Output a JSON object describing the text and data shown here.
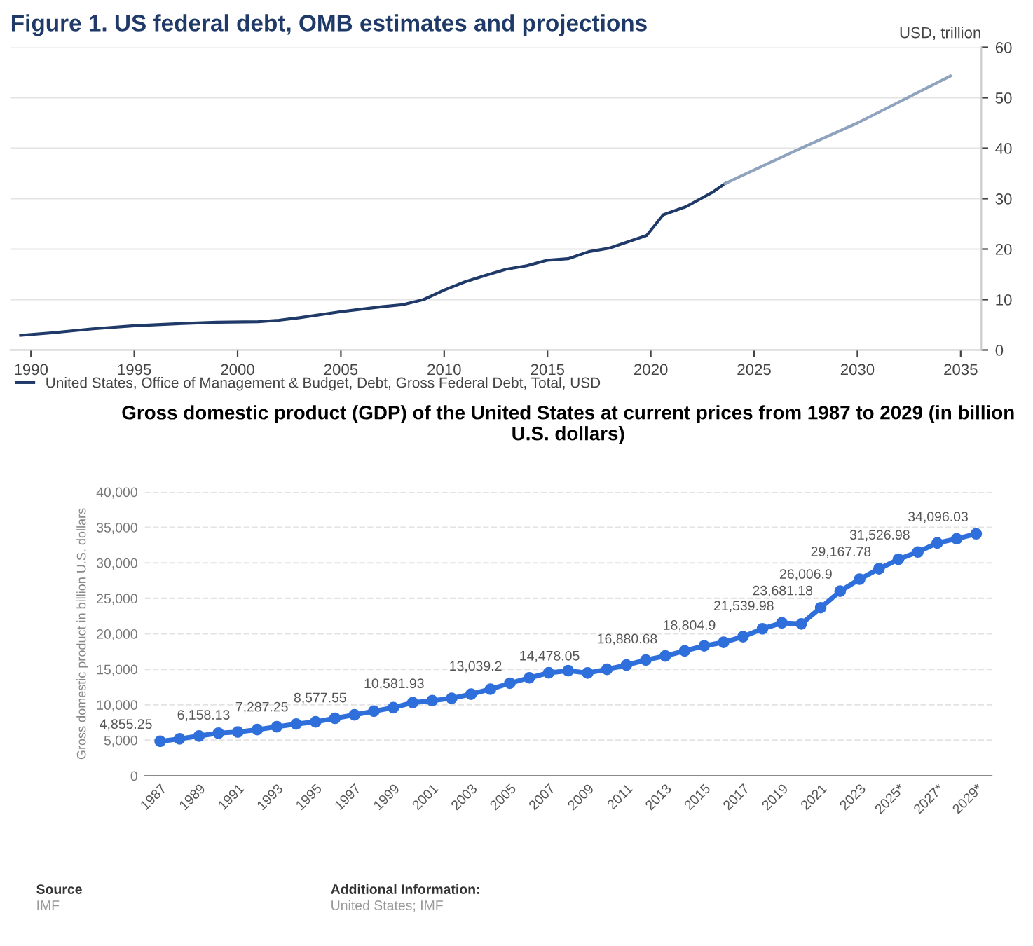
{
  "chart_data": [
    {
      "type": "line",
      "title": "Figure 1. US federal debt, OMB estimates and projections",
      "ylabel": "USD, trillion",
      "series": [
        {
          "name": "United States, Office of Management & Budget, Debt, Gross Federal Debt, Total, USD",
          "color": "#1f3a68",
          "x": [
            1989.5,
            1991,
            1993,
            1995,
            1997,
            1999,
            2001,
            2002,
            2003,
            2005,
            2007,
            2008,
            2009,
            2010,
            2011,
            2012,
            2013,
            2014,
            2015,
            2016,
            2017,
            2018,
            2019.8,
            2020.6,
            2021.7,
            2023.0,
            2023.6
          ],
          "values": [
            2.9,
            3.4,
            4.2,
            4.8,
            5.2,
            5.5,
            5.6,
            5.9,
            6.4,
            7.6,
            8.6,
            9.0,
            10.0,
            11.9,
            13.5,
            14.8,
            16.0,
            16.7,
            17.8,
            18.1,
            19.5,
            20.2,
            22.7,
            26.8,
            28.4,
            31.3,
            33.0
          ]
        },
        {
          "color": "#8fa3bf",
          "x": [
            2023.6,
            2027,
            2030,
            2034.5
          ],
          "values": [
            33.0,
            39.5,
            45.0,
            54.3
          ]
        }
      ],
      "xlim": [
        1989,
        2036
      ],
      "xticks": [
        1990,
        1995,
        2000,
        2005,
        2010,
        2015,
        2020,
        2025,
        2030,
        2035
      ],
      "ylim": [
        0,
        60
      ],
      "yticks": [
        0,
        10,
        20,
        30,
        40,
        50,
        60
      ],
      "grid": "y",
      "legend": "bottom left",
      "marker": "none",
      "line_style": "solid"
    },
    {
      "type": "line",
      "title": "Gross domestic product (GDP) of the United States at current prices from 1987 to 2029 (in billion U.S. dollars)",
      "ylabel": "Gross domestic product in billion U.S. dollars",
      "categories": [
        "1987",
        null,
        "1989",
        null,
        "1991",
        null,
        "1993",
        null,
        "1995",
        null,
        "1997",
        null,
        "1999",
        null,
        "2001",
        null,
        "2003",
        null,
        "2005",
        null,
        "2007",
        null,
        "2009",
        null,
        "2011",
        null,
        "2013",
        null,
        "2015",
        null,
        "2017",
        null,
        "2019",
        null,
        "2021",
        null,
        "2023",
        null,
        "2025*",
        null,
        "2027*",
        null,
        "2029*"
      ],
      "series": [
        {
          "color": "#2f6fdb",
          "values": [
            4855.25,
            5200,
            5600,
            6000,
            6158.13,
            6500,
            6900,
            7287.25,
            7600,
            8100,
            8577.55,
            9100,
            9600,
            10300,
            10581.93,
            10900,
            11500,
            12200,
            13039.2,
            13800,
            14500,
            14800,
            14478.05,
            15000,
            15600,
            16300,
            16880.68,
            17600,
            18300,
            18804.9,
            19600,
            20700,
            21539.98,
            21400,
            23681.18,
            26006.9,
            27700,
            29167.78,
            30500,
            31526.98,
            32800,
            33400,
            34096.03
          ],
          "value_labels": [
            "4,855.25",
            null,
            null,
            null,
            "6,158.13",
            null,
            null,
            "7,287.25",
            null,
            null,
            "8,577.55",
            null,
            null,
            null,
            "10,581.93",
            null,
            null,
            null,
            "13,039.2",
            null,
            null,
            null,
            "14,478.05",
            null,
            null,
            null,
            "16,880.68",
            null,
            null,
            "18,804.9",
            null,
            null,
            "21,539.98",
            null,
            "23,681.18",
            "26,006.9",
            null,
            "29,167.78",
            null,
            "31,526.98",
            null,
            null,
            "34,096.03"
          ]
        }
      ],
      "ylim": [
        0,
        40000
      ],
      "yticks": [
        {
          "value": 0,
          "label": "0"
        },
        {
          "value": 5000,
          "label": "5,000"
        },
        {
          "value": 10000,
          "label": "10,000"
        },
        {
          "value": 15000,
          "label": "15,000"
        },
        {
          "value": 20000,
          "label": "20,000"
        },
        {
          "value": 25000,
          "label": "25,000"
        },
        {
          "value": 30000,
          "label": "30,000"
        },
        {
          "value": 35000,
          "label": "35,000"
        },
        {
          "value": 40000,
          "label": "40,000"
        }
      ],
      "grid": "y",
      "marker": "circle",
      "line_style": "solid",
      "annotations": [
        "Source",
        "IMF",
        "Additional Information:",
        "United States; IMF"
      ]
    }
  ]
}
